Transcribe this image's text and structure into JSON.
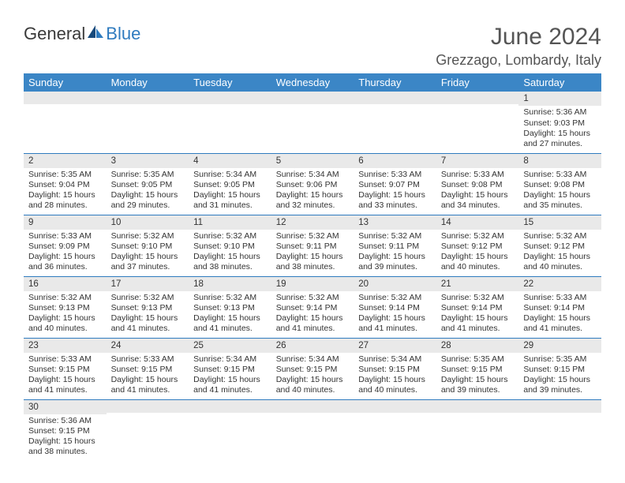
{
  "logo": {
    "text1": "General",
    "text2": "Blue"
  },
  "title": "June 2024",
  "location": "Grezzago, Lombardy, Italy",
  "colors": {
    "header_bg": "#3b86c6",
    "header_text": "#ffffff",
    "row_border": "#2f7bbf",
    "daynum_bg": "#e9e9e9",
    "logo_blue": "#2f7bbf"
  },
  "weekdays": [
    "Sunday",
    "Monday",
    "Tuesday",
    "Wednesday",
    "Thursday",
    "Friday",
    "Saturday"
  ],
  "weeks": [
    [
      {
        "n": "",
        "sr": "",
        "ss": "",
        "dl": ""
      },
      {
        "n": "",
        "sr": "",
        "ss": "",
        "dl": ""
      },
      {
        "n": "",
        "sr": "",
        "ss": "",
        "dl": ""
      },
      {
        "n": "",
        "sr": "",
        "ss": "",
        "dl": ""
      },
      {
        "n": "",
        "sr": "",
        "ss": "",
        "dl": ""
      },
      {
        "n": "",
        "sr": "",
        "ss": "",
        "dl": ""
      },
      {
        "n": "1",
        "sr": "Sunrise: 5:36 AM",
        "ss": "Sunset: 9:03 PM",
        "dl": "Daylight: 15 hours and 27 minutes."
      }
    ],
    [
      {
        "n": "2",
        "sr": "Sunrise: 5:35 AM",
        "ss": "Sunset: 9:04 PM",
        "dl": "Daylight: 15 hours and 28 minutes."
      },
      {
        "n": "3",
        "sr": "Sunrise: 5:35 AM",
        "ss": "Sunset: 9:05 PM",
        "dl": "Daylight: 15 hours and 29 minutes."
      },
      {
        "n": "4",
        "sr": "Sunrise: 5:34 AM",
        "ss": "Sunset: 9:05 PM",
        "dl": "Daylight: 15 hours and 31 minutes."
      },
      {
        "n": "5",
        "sr": "Sunrise: 5:34 AM",
        "ss": "Sunset: 9:06 PM",
        "dl": "Daylight: 15 hours and 32 minutes."
      },
      {
        "n": "6",
        "sr": "Sunrise: 5:33 AM",
        "ss": "Sunset: 9:07 PM",
        "dl": "Daylight: 15 hours and 33 minutes."
      },
      {
        "n": "7",
        "sr": "Sunrise: 5:33 AM",
        "ss": "Sunset: 9:08 PM",
        "dl": "Daylight: 15 hours and 34 minutes."
      },
      {
        "n": "8",
        "sr": "Sunrise: 5:33 AM",
        "ss": "Sunset: 9:08 PM",
        "dl": "Daylight: 15 hours and 35 minutes."
      }
    ],
    [
      {
        "n": "9",
        "sr": "Sunrise: 5:33 AM",
        "ss": "Sunset: 9:09 PM",
        "dl": "Daylight: 15 hours and 36 minutes."
      },
      {
        "n": "10",
        "sr": "Sunrise: 5:32 AM",
        "ss": "Sunset: 9:10 PM",
        "dl": "Daylight: 15 hours and 37 minutes."
      },
      {
        "n": "11",
        "sr": "Sunrise: 5:32 AM",
        "ss": "Sunset: 9:10 PM",
        "dl": "Daylight: 15 hours and 38 minutes."
      },
      {
        "n": "12",
        "sr": "Sunrise: 5:32 AM",
        "ss": "Sunset: 9:11 PM",
        "dl": "Daylight: 15 hours and 38 minutes."
      },
      {
        "n": "13",
        "sr": "Sunrise: 5:32 AM",
        "ss": "Sunset: 9:11 PM",
        "dl": "Daylight: 15 hours and 39 minutes."
      },
      {
        "n": "14",
        "sr": "Sunrise: 5:32 AM",
        "ss": "Sunset: 9:12 PM",
        "dl": "Daylight: 15 hours and 40 minutes."
      },
      {
        "n": "15",
        "sr": "Sunrise: 5:32 AM",
        "ss": "Sunset: 9:12 PM",
        "dl": "Daylight: 15 hours and 40 minutes."
      }
    ],
    [
      {
        "n": "16",
        "sr": "Sunrise: 5:32 AM",
        "ss": "Sunset: 9:13 PM",
        "dl": "Daylight: 15 hours and 40 minutes."
      },
      {
        "n": "17",
        "sr": "Sunrise: 5:32 AM",
        "ss": "Sunset: 9:13 PM",
        "dl": "Daylight: 15 hours and 41 minutes."
      },
      {
        "n": "18",
        "sr": "Sunrise: 5:32 AM",
        "ss": "Sunset: 9:13 PM",
        "dl": "Daylight: 15 hours and 41 minutes."
      },
      {
        "n": "19",
        "sr": "Sunrise: 5:32 AM",
        "ss": "Sunset: 9:14 PM",
        "dl": "Daylight: 15 hours and 41 minutes."
      },
      {
        "n": "20",
        "sr": "Sunrise: 5:32 AM",
        "ss": "Sunset: 9:14 PM",
        "dl": "Daylight: 15 hours and 41 minutes."
      },
      {
        "n": "21",
        "sr": "Sunrise: 5:32 AM",
        "ss": "Sunset: 9:14 PM",
        "dl": "Daylight: 15 hours and 41 minutes."
      },
      {
        "n": "22",
        "sr": "Sunrise: 5:33 AM",
        "ss": "Sunset: 9:14 PM",
        "dl": "Daylight: 15 hours and 41 minutes."
      }
    ],
    [
      {
        "n": "23",
        "sr": "Sunrise: 5:33 AM",
        "ss": "Sunset: 9:15 PM",
        "dl": "Daylight: 15 hours and 41 minutes."
      },
      {
        "n": "24",
        "sr": "Sunrise: 5:33 AM",
        "ss": "Sunset: 9:15 PM",
        "dl": "Daylight: 15 hours and 41 minutes."
      },
      {
        "n": "25",
        "sr": "Sunrise: 5:34 AM",
        "ss": "Sunset: 9:15 PM",
        "dl": "Daylight: 15 hours and 41 minutes."
      },
      {
        "n": "26",
        "sr": "Sunrise: 5:34 AM",
        "ss": "Sunset: 9:15 PM",
        "dl": "Daylight: 15 hours and 40 minutes."
      },
      {
        "n": "27",
        "sr": "Sunrise: 5:34 AM",
        "ss": "Sunset: 9:15 PM",
        "dl": "Daylight: 15 hours and 40 minutes."
      },
      {
        "n": "28",
        "sr": "Sunrise: 5:35 AM",
        "ss": "Sunset: 9:15 PM",
        "dl": "Daylight: 15 hours and 39 minutes."
      },
      {
        "n": "29",
        "sr": "Sunrise: 5:35 AM",
        "ss": "Sunset: 9:15 PM",
        "dl": "Daylight: 15 hours and 39 minutes."
      }
    ],
    [
      {
        "n": "30",
        "sr": "Sunrise: 5:36 AM",
        "ss": "Sunset: 9:15 PM",
        "dl": "Daylight: 15 hours and 38 minutes."
      },
      {
        "n": "",
        "sr": "",
        "ss": "",
        "dl": ""
      },
      {
        "n": "",
        "sr": "",
        "ss": "",
        "dl": ""
      },
      {
        "n": "",
        "sr": "",
        "ss": "",
        "dl": ""
      },
      {
        "n": "",
        "sr": "",
        "ss": "",
        "dl": ""
      },
      {
        "n": "",
        "sr": "",
        "ss": "",
        "dl": ""
      },
      {
        "n": "",
        "sr": "",
        "ss": "",
        "dl": ""
      }
    ]
  ]
}
